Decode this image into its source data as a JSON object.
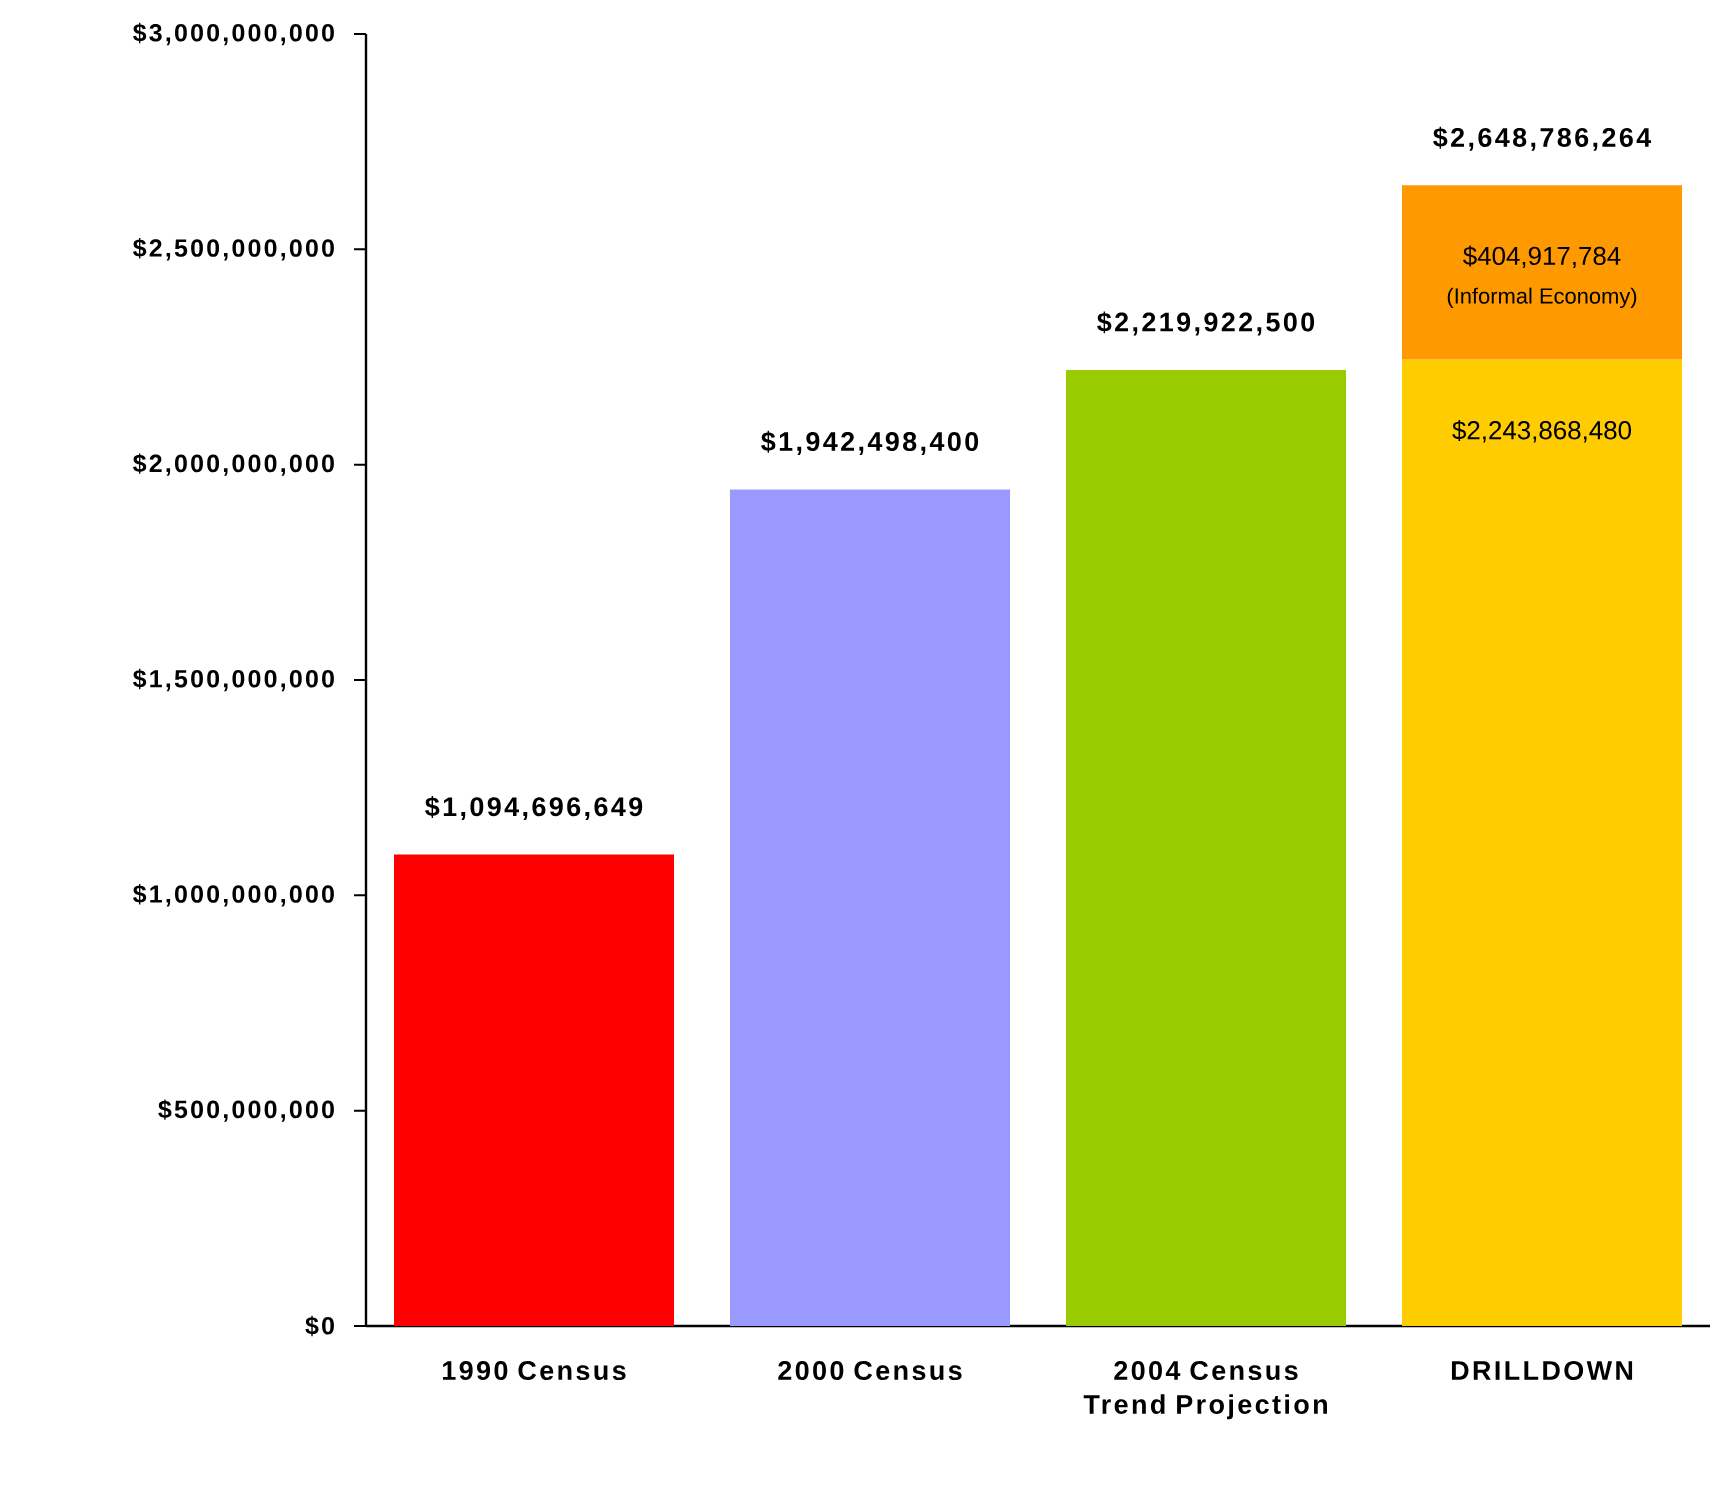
{
  "chart_data": {
    "type": "bar",
    "stacked": true,
    "categories": [
      "1990 Census",
      "2000 Census",
      "2004 Census Trend Projection",
      "DRILLDOWN"
    ],
    "series": [
      {
        "colors": [
          "#ff0000",
          "#9999ff",
          "#99cc00",
          "#ffcc00"
        ],
        "values": [
          1094696649,
          1942498400,
          2219922500,
          2243868480
        ],
        "value_labels": [
          "$1,094,696,649",
          "$1,942,498,400",
          "$2,219,922,500",
          "$2,243,868,480"
        ]
      },
      {
        "color": "#ff9900",
        "values": [
          null,
          null,
          null,
          404917784
        ],
        "value_labels": [
          null,
          null,
          null,
          "$404,917,784"
        ]
      }
    ],
    "totals": [
      null,
      null,
      null,
      "$2,648,786,264"
    ],
    "annotations": [
      "(Informal Economy)"
    ],
    "ylim": [
      0,
      3000000000
    ],
    "yticks": [
      {
        "value": 0,
        "label": "$0"
      },
      {
        "value": 500000000,
        "label": "$500,000,000"
      },
      {
        "value": 1000000000,
        "label": "$1,000,000,000"
      },
      {
        "value": 1500000000,
        "label": "$1,500,000,000"
      },
      {
        "value": 2000000000,
        "label": "$2,000,000,000"
      },
      {
        "value": 2500000000,
        "label": "$2,500,000,000"
      },
      {
        "value": 3000000000,
        "label": "$3,000,000,000"
      }
    ],
    "grid": false
  }
}
